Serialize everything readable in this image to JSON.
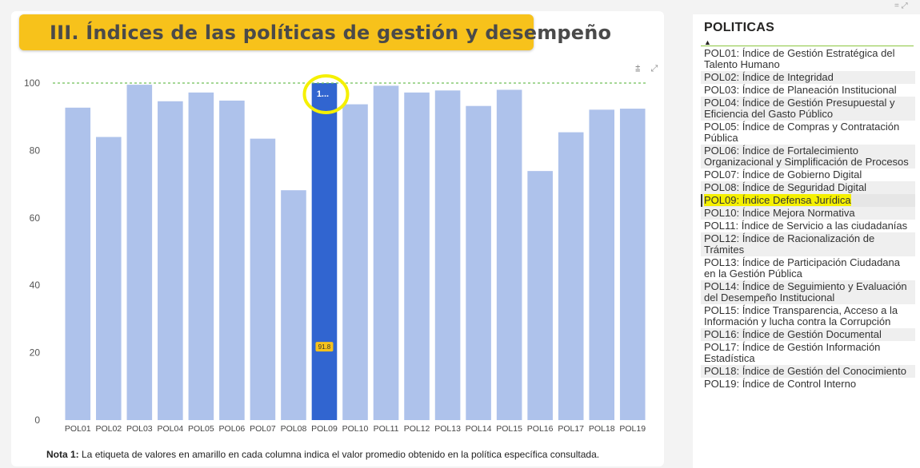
{
  "header": {
    "title": "III. Índices de las políticas de gestión y desempeño"
  },
  "chart_icons": {
    "filter": "⩲",
    "focus": "⤢"
  },
  "top_icons": "= ⤢",
  "chart_data": {
    "type": "bar",
    "categories": [
      "POL01",
      "POL02",
      "POL03",
      "POL04",
      "POL05",
      "POL06",
      "POL07",
      "POL08",
      "POL09",
      "POL10",
      "POL11",
      "POL12",
      "POL13",
      "POL14",
      "POL15",
      "POL16",
      "POL17",
      "POL18",
      "POL19"
    ],
    "values": [
      92.7,
      84.0,
      99.5,
      94.6,
      97.2,
      94.8,
      83.5,
      68.2,
      100,
      93.7,
      99.2,
      97.2,
      97.8,
      93.2,
      98.0,
      73.9,
      85.4,
      92.1,
      92.4
    ],
    "selected": "POL09",
    "selected_top_label": "1...",
    "average_label": "91.8",
    "average": 91.8,
    "reference_line": 100,
    "ylim": [
      0,
      105
    ],
    "yticks": [
      0,
      20,
      40,
      60,
      80,
      100
    ],
    "colors": {
      "bar": "#aec2eb",
      "selected": "#3165d0",
      "reference": "#6fbf57",
      "highlight": "#f5f000",
      "badge": "#f7c21b"
    }
  },
  "note": {
    "bold": "Nota 1:",
    "text": " La etiqueta de valores en amarillo en cada columna indica el valor promedio obtenido en la política específica consultada."
  },
  "panel": {
    "title": "POLITICAS",
    "sort_arrow": "▲",
    "items": [
      "POL01: Índice de Gestión Estratégica del Talento Humano",
      "POL02: Índice de Integridad",
      "POL03: Índice de Planeación Institucional",
      "POL04: Índice de Gestión Presupuestal y Eficiencia del Gasto Público",
      "POL05: Índice de Compras y Contratación Pública",
      "POL06: Índice de Fortalecimiento Organizacional y Simplificación de Procesos",
      "POL07: Índice de Gobierno Digital",
      "POL08: Índice de Seguridad Digital",
      "POL09: Índice Defensa Jurídica",
      "POL10: Índice Mejora Normativa",
      "POL11: Índice de Servicio a las ciudadanías",
      "POL12: Índice de Racionalización de Trámites",
      "POL13: Índice de Participación Ciudadana en la Gestión Pública",
      "POL14: Índice de Seguimiento y Evaluación del Desempeño Institucional",
      "POL15: Índice Transparencia, Acceso a la Información y lucha contra la Corrupción",
      "POL16: Índice de Gestión Documental",
      "POL17: Índice de Gestión Información Estadística",
      "POL18: Índice de Gestión del Conocimiento",
      "POL19: Índice de Control Interno"
    ],
    "selected_index": 8
  }
}
